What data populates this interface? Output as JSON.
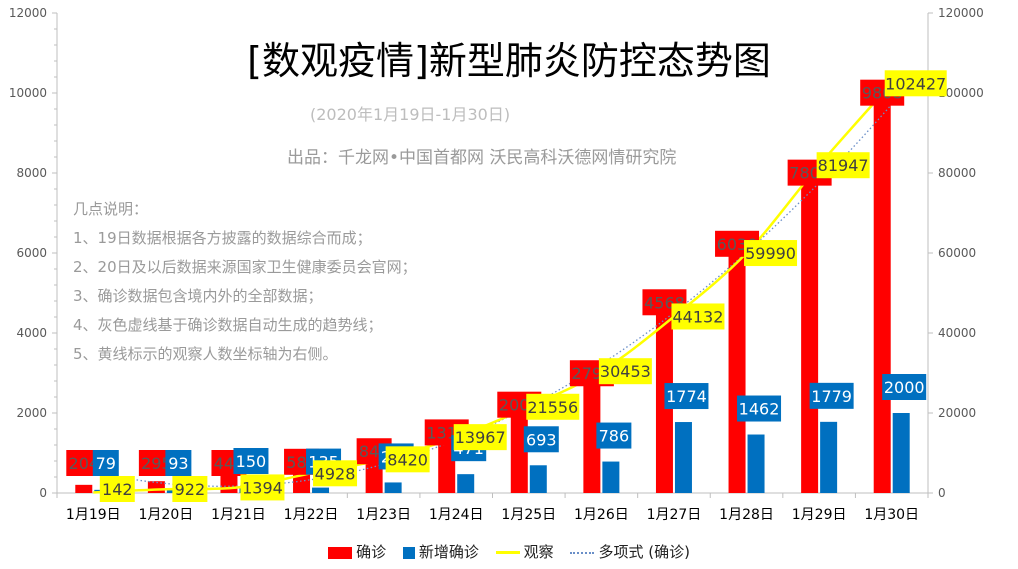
{
  "title": "[数观疫情]新型肺炎防控态势图",
  "subtitle": "(2020年1月19日-1月30日)",
  "producer": "出品：千龙网•中国首都网  沃民高科沃德网情研究院",
  "notes": [
    "几点说明：",
    "1、19日数据根据各方披露的数据综合而成；",
    "2、20日及以后数据来源国家卫生健康委员会官网；",
    "3、确诊数据包含境内外的全部数据；",
    "4、灰色虚线基于确诊数据自动生成的趋势线；",
    "5、黄线标示的观察人数坐标轴为右侧。"
  ],
  "chart_data": {
    "type": "bar",
    "categories": [
      "1月19日",
      "1月20日",
      "1月21日",
      "1月22日",
      "1月23日",
      "1月24日",
      "1月25日",
      "1月26日",
      "1月27日",
      "1月28日",
      "1月29日",
      "1月30日"
    ],
    "series": [
      {
        "name": "确诊",
        "type": "bar",
        "axis": "left",
        "color": "#ff0000",
        "values": [
          204,
          295,
          445,
          580,
          844,
          1315,
          2008,
          2794,
          4568,
          6030,
          7809,
          9808
        ],
        "labels": [
          "204",
          "295",
          "445",
          "580",
          "844",
          "1315",
          "2008",
          "2794",
          "4568",
          "6030",
          "7809",
          "9808"
        ]
      },
      {
        "name": "新增确诊",
        "type": "bar",
        "axis": "left",
        "color": "#0070c0",
        "values": [
          79,
          93,
          150,
          135,
          264,
          471,
          693,
          786,
          1774,
          1462,
          1779,
          2000
        ],
        "labels": [
          "79",
          "93",
          "150",
          "135",
          "264",
          "471",
          "693",
          "786",
          "1774",
          "1462",
          "1779",
          "2000"
        ]
      },
      {
        "name": "观察",
        "type": "line",
        "axis": "right",
        "color": "#ffff00",
        "values": [
          142,
          922,
          1394,
          4928,
          8420,
          13967,
          21556,
          30453,
          44132,
          59990,
          81947,
          102427
        ],
        "labels": [
          "142",
          "922",
          "1394",
          "4928",
          "8420",
          "13967",
          "21556",
          "30453",
          "44132",
          "59990",
          "81947",
          "102427"
        ]
      }
    ],
    "trendline": {
      "name": "多项式 (确诊)",
      "style": "dotted",
      "color": "#6a8fc8"
    },
    "y_left": {
      "ylim": [
        0,
        12000
      ],
      "ticks": [
        "0",
        "2000",
        "4000",
        "6000",
        "8000",
        "10000",
        "12000"
      ]
    },
    "y_right": {
      "ylim": [
        0,
        120000
      ],
      "ticks": [
        "0",
        "20000",
        "40000",
        "60000",
        "80000",
        "100000",
        "120000"
      ]
    },
    "legend_position": "bottom-center",
    "grid": false
  }
}
